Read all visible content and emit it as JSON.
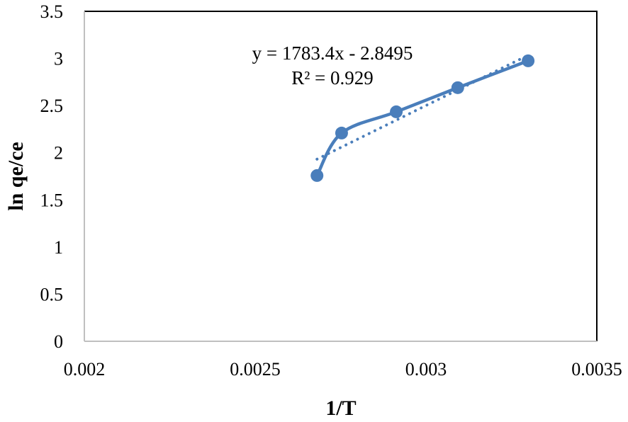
{
  "chart_data": {
    "type": "scatter",
    "title": "",
    "xlabel": "1/T",
    "ylabel": "ln qe/ce",
    "xlim": [
      0.002,
      0.0035
    ],
    "ylim": [
      0,
      3.5
    ],
    "x_ticks": [
      "0.002",
      "0.0025",
      "0.003",
      "0.0035"
    ],
    "x_tick_values": [
      0.002,
      0.0025,
      0.003,
      0.0035
    ],
    "y_ticks": [
      "0",
      "0.5",
      "1",
      "1.5",
      "2",
      "2.5",
      "3",
      "3.5"
    ],
    "y_tick_values": [
      0,
      0.5,
      1,
      1.5,
      2,
      2.5,
      3,
      3.5
    ],
    "grid": false,
    "legend": null,
    "series": [
      {
        "name": "ln qe/ce",
        "style": "smoothed line with circle markers",
        "color": "#4a7ebb",
        "x": [
          0.002681,
          0.002753,
          0.002913,
          0.003093,
          0.003299
        ],
        "y": [
          1.758,
          2.209,
          2.434,
          2.69,
          2.975
        ]
      }
    ],
    "trendline": {
      "type": "linear",
      "style": "dotted",
      "color": "#4a7ebb",
      "slope": 1783.4,
      "intercept": -2.8495,
      "x_range": [
        0.002681,
        0.003299
      ]
    },
    "annotations": [
      "y = 1783.4x - 2.8495",
      "R² = 0.929"
    ]
  },
  "labels": {
    "equation": "y = 1783.4x - 2.8495",
    "r_squared": "R² = 0.929",
    "xlabel": "1/T",
    "ylabel": "ln qe/ce"
  },
  "colors": {
    "series": "#4a7ebb",
    "axis": "#bfbfbf",
    "frame": "#000000"
  }
}
